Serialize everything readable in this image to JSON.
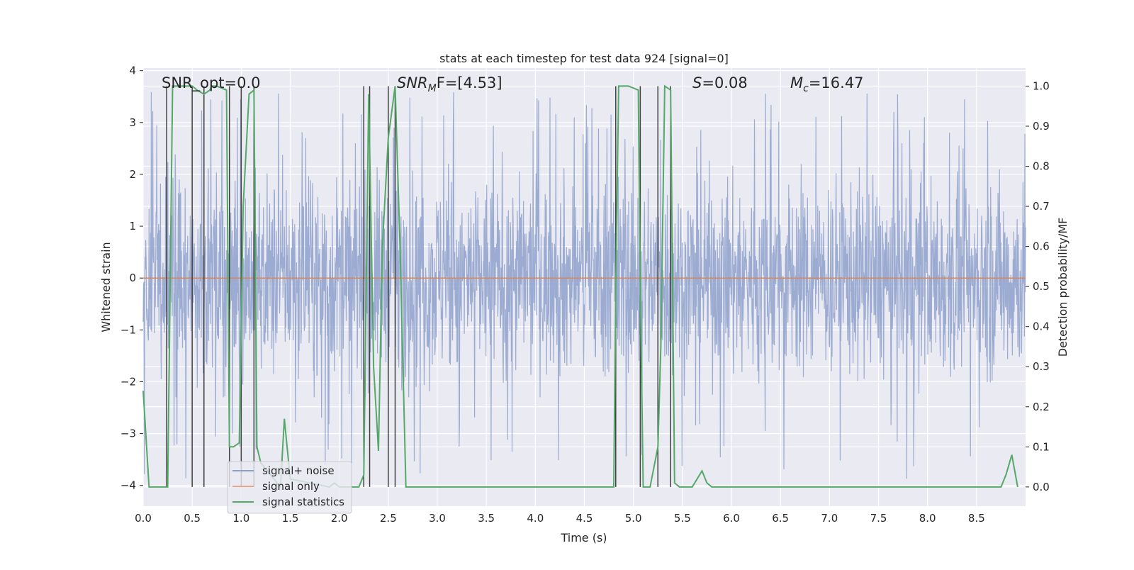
{
  "chart_data": {
    "type": "line",
    "title": "stats at each timestep for test data 924 [signal=0]",
    "xlabel": "Time (s)",
    "ylabel": "Whitened strain",
    "ylabel_right": "Detection probability/MF",
    "xlim": [
      0.0,
      9.0
    ],
    "ylim": [
      -4.4,
      4.05
    ],
    "ylim_right": [
      -0.048,
      1.045
    ],
    "x_ticks": [
      0.0,
      0.5,
      1.0,
      1.5,
      2.0,
      2.5,
      3.0,
      3.5,
      4.0,
      4.5,
      5.0,
      5.5,
      6.0,
      6.5,
      7.0,
      7.5,
      8.0,
      8.5
    ],
    "x_tick_labels": [
      "0.0",
      "0.5",
      "1.0",
      "1.5",
      "2.0",
      "2.5",
      "3.0",
      "3.5",
      "4.0",
      "4.5",
      "5.0",
      "5.5",
      "6.0",
      "6.5",
      "7.0",
      "7.5",
      "8.0",
      "8.5"
    ],
    "y_ticks": [
      4,
      3,
      2,
      1,
      0,
      -1,
      -2,
      -3,
      -4
    ],
    "y_tick_labels": [
      "4",
      "3",
      "2",
      "1",
      "0",
      "−1",
      "−2",
      "−3",
      "−4"
    ],
    "y_ticks_right": [
      1.0,
      0.9,
      0.8,
      0.7,
      0.6,
      0.5,
      0.4,
      0.3,
      0.2,
      0.1,
      0.0
    ],
    "y_tick_labels_right": [
      "1.0",
      "0.9",
      "0.8",
      "0.7",
      "0.6",
      "0.5",
      "0.4",
      "0.3",
      "0.2",
      "0.1",
      "0.0"
    ],
    "annotations": {
      "snr_opt": "SNR_opt=0.0",
      "snr_mf_sym": "SNR",
      "snr_mf_sub": "M",
      "snr_mf_rest": "F=[4.53]",
      "s_sym": "S",
      "s_val": "=0.08",
      "mc_sym": "M",
      "mc_sub": "c",
      "mc_val": "=16.47"
    },
    "legend": {
      "placement": "lower-left",
      "entries": [
        {
          "label": "signal+ noise",
          "color": "#8da0cb"
        },
        {
          "label": "signal only",
          "color": "#e5a58a"
        },
        {
          "label": "signal statistics",
          "color": "#55a868"
        }
      ]
    },
    "noise_series": {
      "name": "signal+ noise",
      "color": "#8da0cb",
      "note": "dense whitened-strain noise between roughly -2 and 2 with spikes to about ±3.6",
      "typical_range": [
        -2.0,
        2.0
      ],
      "extreme_range": [
        -3.9,
        3.6
      ]
    },
    "signal_only": {
      "name": "signal only",
      "value": 0.0,
      "color": "#dd8452"
    },
    "signal_statistics": {
      "name": "signal statistics",
      "color": "#55a868",
      "x": [
        0.0,
        0.06,
        0.25,
        0.3,
        0.5,
        0.55,
        0.62,
        0.68,
        0.7,
        0.75,
        0.85,
        0.88,
        0.92,
        0.98,
        1.02,
        1.08,
        1.13,
        1.16,
        1.2,
        1.4,
        1.44,
        1.5,
        1.9,
        1.95,
        2.0,
        2.2,
        2.25,
        2.3,
        2.35,
        2.4,
        2.44,
        2.5,
        2.57,
        2.62,
        2.68,
        3.0,
        4.0,
        4.5,
        4.8,
        4.82,
        4.85,
        4.95,
        5.05,
        5.07,
        5.1,
        5.17,
        5.25,
        5.28,
        5.32,
        5.38,
        5.42,
        5.47,
        5.5,
        5.6,
        5.7,
        5.75,
        5.8,
        6.5,
        7.5,
        8.5,
        8.75,
        8.8,
        8.86,
        8.92
      ],
      "values": [
        0.24,
        0.0,
        0.0,
        1.0,
        1.0,
        0.99,
        0.98,
        0.99,
        1.0,
        1.0,
        0.99,
        0.1,
        0.1,
        0.11,
        0.7,
        0.98,
        0.99,
        0.1,
        0.06,
        0.0,
        0.17,
        0.02,
        0.0,
        0.01,
        0.0,
        0.0,
        0.03,
        0.98,
        0.3,
        0.09,
        0.6,
        0.87,
        1.0,
        0.6,
        0.0,
        0.0,
        0.0,
        0.0,
        0.0,
        0.5,
        1.0,
        1.0,
        0.99,
        0.5,
        0.0,
        0.0,
        0.1,
        0.35,
        1.0,
        0.99,
        0.01,
        0.0,
        0.0,
        0.0,
        0.04,
        0.01,
        0.0,
        0.0,
        0.0,
        0.0,
        0.0,
        0.03,
        0.08,
        0.0
      ]
    },
    "event_lines": {
      "color": "#404040",
      "x": [
        0.24,
        0.5,
        0.62,
        0.88,
        1.0,
        1.13,
        2.25,
        2.31,
        2.5,
        2.57,
        4.82,
        5.07,
        5.25,
        5.38
      ]
    }
  }
}
